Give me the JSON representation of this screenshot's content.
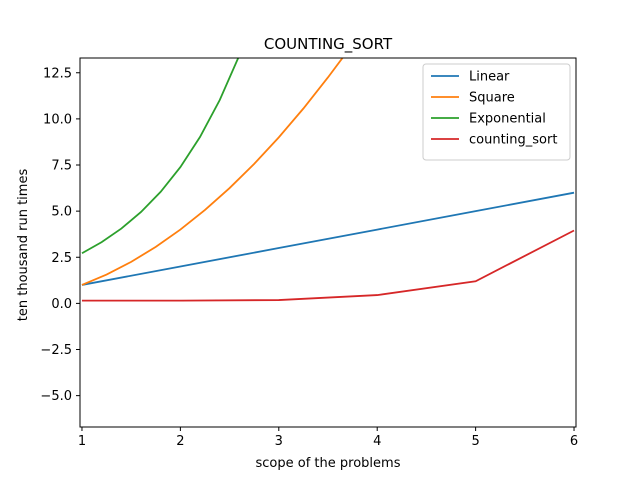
{
  "chart_data": {
    "type": "line",
    "title": "COUNTING_SORT",
    "xlabel": "scope of the problems",
    "ylabel": "ten thousand run times",
    "xlim": [
      0.98,
      6.02
    ],
    "ylim": [
      -6.7,
      13.3
    ],
    "xticks": [
      1,
      2,
      3,
      4,
      5,
      6
    ],
    "xtick_labels": [
      "1",
      "2",
      "3",
      "4",
      "5",
      "6"
    ],
    "yticks": [
      -5.0,
      -2.5,
      0.0,
      2.5,
      5.0,
      7.5,
      10.0,
      12.5
    ],
    "ytick_labels": [
      "−5.0",
      "−2.5",
      "0.0",
      "2.5",
      "5.0",
      "7.5",
      "10.0",
      "12.5"
    ],
    "grid": false,
    "legend_position": "top-right",
    "series": [
      {
        "name": "Linear",
        "color": "#1f77b4",
        "x": [
          1,
          2,
          3,
          4,
          5,
          6
        ],
        "y": [
          1,
          2,
          3,
          4,
          5,
          6
        ]
      },
      {
        "name": "Square",
        "color": "#ff7f0e",
        "x": [
          1,
          1.25,
          1.5,
          1.75,
          2,
          2.25,
          2.5,
          2.75,
          3,
          3.25,
          3.5,
          3.65
        ],
        "y": [
          1,
          1.5625,
          2.25,
          3.0625,
          4,
          5.0625,
          6.25,
          7.5625,
          9,
          10.5625,
          12.25,
          13.3225
        ]
      },
      {
        "name": "Exponential",
        "color": "#2ca02c",
        "x": [
          1,
          1.2,
          1.4,
          1.6,
          1.8,
          2,
          2.2,
          2.4,
          2.59
        ],
        "y": [
          2.718,
          3.32,
          4.055,
          4.953,
          6.05,
          7.389,
          9.025,
          11.023,
          13.33
        ]
      },
      {
        "name": "counting_sort",
        "color": "#d62728",
        "x": [
          1,
          2,
          3,
          4,
          5,
          6
        ],
        "y": [
          0.15,
          0.15,
          0.18,
          0.45,
          1.2,
          3.95
        ]
      }
    ]
  }
}
